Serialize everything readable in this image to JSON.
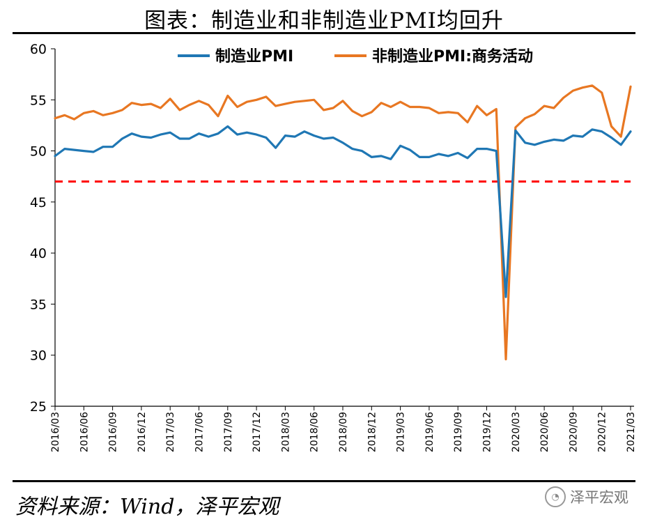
{
  "title": "图表：制造业和非制造业PMI均回升",
  "source": "资料来源：Wind，泽平宏观",
  "watermark": {
    "text": "泽平宏观",
    "icon": "wechat-icon"
  },
  "chart_data": {
    "type": "line",
    "title": "图表：制造业和非制造业PMI均回升",
    "xlabel": "",
    "ylabel": "",
    "ylim": [
      25,
      60
    ],
    "yticks": [
      25,
      30,
      35,
      40,
      45,
      50,
      55,
      60
    ],
    "grid": false,
    "legend_position": "top-right",
    "threshold": {
      "value": 47,
      "style": "dashed",
      "color": "#ff0000"
    },
    "x": [
      "2016/03",
      "2016/04",
      "2016/05",
      "2016/06",
      "2016/07",
      "2016/08",
      "2016/09",
      "2016/10",
      "2016/11",
      "2016/12",
      "2017/01",
      "2017/02",
      "2017/03",
      "2017/04",
      "2017/05",
      "2017/06",
      "2017/07",
      "2017/08",
      "2017/09",
      "2017/10",
      "2017/11",
      "2017/12",
      "2018/01",
      "2018/02",
      "2018/03",
      "2018/04",
      "2018/05",
      "2018/06",
      "2018/07",
      "2018/08",
      "2018/09",
      "2018/10",
      "2018/11",
      "2018/12",
      "2019/01",
      "2019/02",
      "2019/03",
      "2019/04",
      "2019/05",
      "2019/06",
      "2019/07",
      "2019/08",
      "2019/09",
      "2019/10",
      "2019/11",
      "2019/12",
      "2020/01",
      "2020/02",
      "2020/03",
      "2020/04",
      "2020/05",
      "2020/06",
      "2020/07",
      "2020/08",
      "2020/09",
      "2020/10",
      "2020/11",
      "2020/12",
      "2021/01",
      "2021/02",
      "2021/03"
    ],
    "xtick_labels": [
      "2016/03",
      "2016/06",
      "2016/09",
      "2016/12",
      "2017/03",
      "2017/06",
      "2017/09",
      "2017/12",
      "2018/03",
      "2018/06",
      "2018/09",
      "2018/12",
      "2019/03",
      "2019/06",
      "2019/09",
      "2019/12",
      "2020/03",
      "2020/06",
      "2020/09",
      "2020/12",
      "2021/03"
    ],
    "series": [
      {
        "name": "制造业PMI",
        "color": "#1f77b4",
        "values": [
          49.5,
          50.2,
          50.1,
          50.0,
          49.9,
          50.4,
          50.4,
          51.2,
          51.7,
          51.4,
          51.3,
          51.6,
          51.8,
          51.2,
          51.2,
          51.7,
          51.4,
          51.7,
          52.4,
          51.6,
          51.8,
          51.6,
          51.3,
          50.3,
          51.5,
          51.4,
          51.9,
          51.5,
          51.2,
          51.3,
          50.8,
          50.2,
          50.0,
          49.4,
          49.5,
          49.2,
          50.5,
          50.1,
          49.4,
          49.4,
          49.7,
          49.5,
          49.8,
          49.3,
          50.2,
          50.2,
          50.0,
          35.7,
          52.0,
          50.8,
          50.6,
          50.9,
          51.1,
          51.0,
          51.5,
          51.4,
          52.1,
          51.9,
          51.3,
          50.6,
          51.9
        ]
      },
      {
        "name": "非制造业PMI:商务活动",
        "color": "#e87722",
        "values": [
          53.2,
          53.5,
          53.1,
          53.7,
          53.9,
          53.5,
          53.7,
          54.0,
          54.7,
          54.5,
          54.6,
          54.2,
          55.1,
          54.0,
          54.5,
          54.9,
          54.5,
          53.4,
          55.4,
          54.3,
          54.8,
          55.0,
          55.3,
          54.4,
          54.6,
          54.8,
          54.9,
          55.0,
          54.0,
          54.2,
          54.9,
          53.9,
          53.4,
          53.8,
          54.7,
          54.3,
          54.8,
          54.3,
          54.3,
          54.2,
          53.7,
          53.8,
          53.7,
          52.8,
          54.4,
          53.5,
          54.1,
          29.6,
          52.3,
          53.2,
          53.6,
          54.4,
          54.2,
          55.2,
          55.9,
          56.2,
          56.4,
          55.7,
          52.4,
          51.4,
          56.3
        ]
      }
    ]
  }
}
